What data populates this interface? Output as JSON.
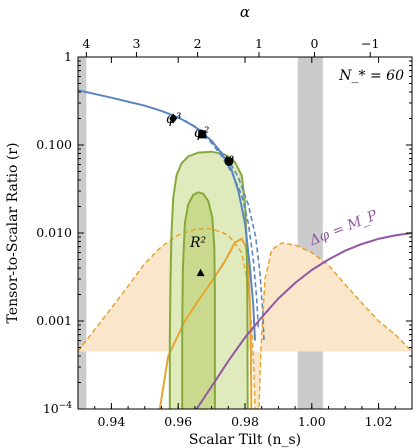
{
  "chart_data": {
    "type": "line",
    "xlabel": "Scalar Tilt (n_s)",
    "ylabel": "Tensor-to-Scalar Ratio (r)",
    "top_xlabel": "α",
    "annotation": "N_* = 60",
    "xlim": [
      0.93,
      1.03
    ],
    "ylim": [
      0.0001,
      1
    ],
    "yscale": "log",
    "x_ticks": [
      0.94,
      0.96,
      0.98,
      1.0,
      1.02
    ],
    "x_tick_labels": [
      "0.94",
      "0.96",
      "0.98",
      "1.00",
      "1.02"
    ],
    "y_ticks": [
      0.0001,
      0.001,
      0.01,
      0.1,
      1
    ],
    "y_tick_labels": [
      "10^-4",
      "0.001",
      "0.010",
      "0.100",
      "1"
    ],
    "top_ticks": [
      {
        "alpha": 4,
        "ns": 0.9325,
        "label": "4"
      },
      {
        "alpha": 3,
        "ns": 0.9475,
        "label": "3"
      },
      {
        "alpha": 2,
        "ns": 0.9658,
        "label": "2"
      },
      {
        "alpha": 1,
        "ns": 0.9842,
        "label": "1"
      },
      {
        "alpha": 0,
        "ns": 1.0008,
        "label": "0"
      },
      {
        "alpha": -1,
        "ns": 1.0175,
        "label": "−1"
      }
    ],
    "excluded_bands": [
      {
        "from": 0.93,
        "to": 0.9325
      },
      {
        "from": 0.9958,
        "to": 1.0033
      }
    ],
    "series": [
      {
        "role": "monomial-potentials",
        "style": "solid",
        "color": "#5b86be",
        "points": [
          [
            0.93,
            0.42
          ],
          [
            0.94,
            0.345
          ],
          [
            0.95,
            0.28
          ],
          [
            0.955,
            0.244
          ],
          [
            0.96,
            0.206
          ],
          [
            0.965,
            0.162
          ],
          [
            0.97,
            0.112
          ],
          [
            0.973,
            0.08
          ],
          [
            0.976,
            0.052
          ],
          [
            0.978,
            0.03
          ],
          [
            0.98,
            0.013
          ],
          [
            0.9815,
            0.004
          ],
          [
            0.9825,
            0.0015
          ],
          [
            0.983,
            0.0006
          ]
        ]
      },
      {
        "role": "monomial-potentials-dashed-1",
        "style": "dashed",
        "color": "#5b86be",
        "points": [
          [
            0.962,
            0.19
          ],
          [
            0.966,
            0.15
          ],
          [
            0.97,
            0.105
          ],
          [
            0.973,
            0.075
          ],
          [
            0.976,
            0.049
          ],
          [
            0.979,
            0.027
          ],
          [
            0.981,
            0.013
          ],
          [
            0.9825,
            0.005
          ],
          [
            0.9835,
            0.0018
          ],
          [
            0.984,
            0.0008
          ]
        ]
      },
      {
        "role": "monomial-potentials-dashed-2",
        "style": "dashed",
        "color": "#5b86be",
        "points": [
          [
            0.962,
            0.19
          ],
          [
            0.967,
            0.145
          ],
          [
            0.971,
            0.1
          ],
          [
            0.975,
            0.068
          ],
          [
            0.978,
            0.043
          ],
          [
            0.981,
            0.021
          ],
          [
            0.9832,
            0.009
          ],
          [
            0.9845,
            0.0035
          ],
          [
            0.9853,
            0.0013
          ],
          [
            0.9857,
            0.0006
          ]
        ]
      },
      {
        "role": "delta-phi-planck",
        "label": "Δφ = M_P",
        "style": "solid",
        "color": "#9256a2",
        "points": [
          [
            0.9655,
            0.0001
          ],
          [
            0.97,
            0.00018
          ],
          [
            0.975,
            0.00035
          ],
          [
            0.98,
            0.00065
          ],
          [
            0.985,
            0.0011
          ],
          [
            0.99,
            0.0018
          ],
          [
            0.995,
            0.0027
          ],
          [
            1.0,
            0.0038
          ],
          [
            1.005,
            0.005
          ],
          [
            1.01,
            0.0063
          ],
          [
            1.015,
            0.0075
          ],
          [
            1.02,
            0.0086
          ],
          [
            1.025,
            0.0094
          ],
          [
            1.03,
            0.01
          ]
        ]
      }
    ],
    "contours": [
      {
        "role": "outer-green",
        "color": "#86a93a",
        "fill": "#dfeabd",
        "points": [
          [
            0.9575,
            0.0001
          ],
          [
            0.9575,
            0.0006
          ],
          [
            0.9577,
            0.003
          ],
          [
            0.958,
            0.01
          ],
          [
            0.9585,
            0.025
          ],
          [
            0.9595,
            0.045
          ],
          [
            0.961,
            0.062
          ],
          [
            0.963,
            0.074
          ],
          [
            0.966,
            0.082
          ],
          [
            0.97,
            0.084
          ],
          [
            0.974,
            0.078
          ],
          [
            0.977,
            0.064
          ],
          [
            0.979,
            0.045
          ],
          [
            0.98,
            0.022
          ],
          [
            0.9805,
            0.008
          ],
          [
            0.9807,
            0.002
          ],
          [
            0.9808,
            0.0001
          ]
        ]
      },
      {
        "role": "inner-green",
        "color": "#86a93a",
        "fill": "#c9da8e",
        "points": [
          [
            0.9612,
            0.0001
          ],
          [
            0.9612,
            0.0008
          ],
          [
            0.9614,
            0.004
          ],
          [
            0.962,
            0.013
          ],
          [
            0.963,
            0.021
          ],
          [
            0.9645,
            0.027
          ],
          [
            0.966,
            0.029
          ],
          [
            0.9675,
            0.028
          ],
          [
            0.969,
            0.023
          ],
          [
            0.9702,
            0.015
          ],
          [
            0.9708,
            0.007
          ],
          [
            0.971,
            0.002
          ],
          [
            0.971,
            0.0001
          ]
        ]
      },
      {
        "role": "outer-orange-dashed",
        "color": "#e8a431",
        "fill": "#fae6cb",
        "style": "dashed",
        "points": [
          [
            0.93,
            0.00045
          ],
          [
            0.935,
            0.0008
          ],
          [
            0.94,
            0.0014
          ],
          [
            0.945,
            0.0025
          ],
          [
            0.95,
            0.0045
          ],
          [
            0.955,
            0.007
          ],
          [
            0.96,
            0.0095
          ],
          [
            0.965,
            0.011
          ],
          [
            0.97,
            0.0112
          ],
          [
            0.975,
            0.0095
          ],
          [
            0.979,
            0.006
          ],
          [
            0.981,
            0.0025
          ],
          [
            0.9822,
            0.0007
          ],
          [
            0.9827,
            0.00025
          ],
          [
            0.983,
            0.0001
          ],
          [
            0.9842,
            0.0001
          ],
          [
            0.9848,
            0.0005
          ],
          [
            0.986,
            0.003
          ],
          [
            0.988,
            0.0065
          ],
          [
            0.991,
            0.0077
          ],
          [
            0.995,
            0.0073
          ],
          [
            1.0,
            0.006
          ],
          [
            1.005,
            0.0043
          ],
          [
            1.01,
            0.0026
          ],
          [
            1.015,
            0.0016
          ],
          [
            1.02,
            0.001
          ],
          [
            1.025,
            0.0007
          ],
          [
            1.03,
            0.00045
          ]
        ]
      },
      {
        "role": "inner-orange",
        "color": "#e8a431",
        "points": [
          [
            0.9545,
            0.0001
          ],
          [
            0.957,
            0.0004
          ],
          [
            0.962,
            0.001
          ],
          [
            0.966,
            0.0017
          ],
          [
            0.97,
            0.0028
          ],
          [
            0.974,
            0.0048
          ],
          [
            0.977,
            0.0078
          ],
          [
            0.979,
            0.0086
          ],
          [
            0.9802,
            0.007
          ],
          [
            0.981,
            0.004
          ],
          [
            0.9815,
            0.0015
          ],
          [
            0.9818,
            0.0004
          ],
          [
            0.9819,
            0.0001
          ]
        ]
      }
    ],
    "markers": [
      {
        "label": "φ³",
        "shape": "diamond",
        "x": 0.9585,
        "y": 0.2
      },
      {
        "label": "φ²",
        "shape": "square",
        "x": 0.9672,
        "y": 0.132
      },
      {
        "label": "φ",
        "shape": "circle",
        "x": 0.9752,
        "y": 0.065
      },
      {
        "label": "R²",
        "shape": "triangle",
        "x": 0.9667,
        "y": 0.0035
      }
    ]
  }
}
